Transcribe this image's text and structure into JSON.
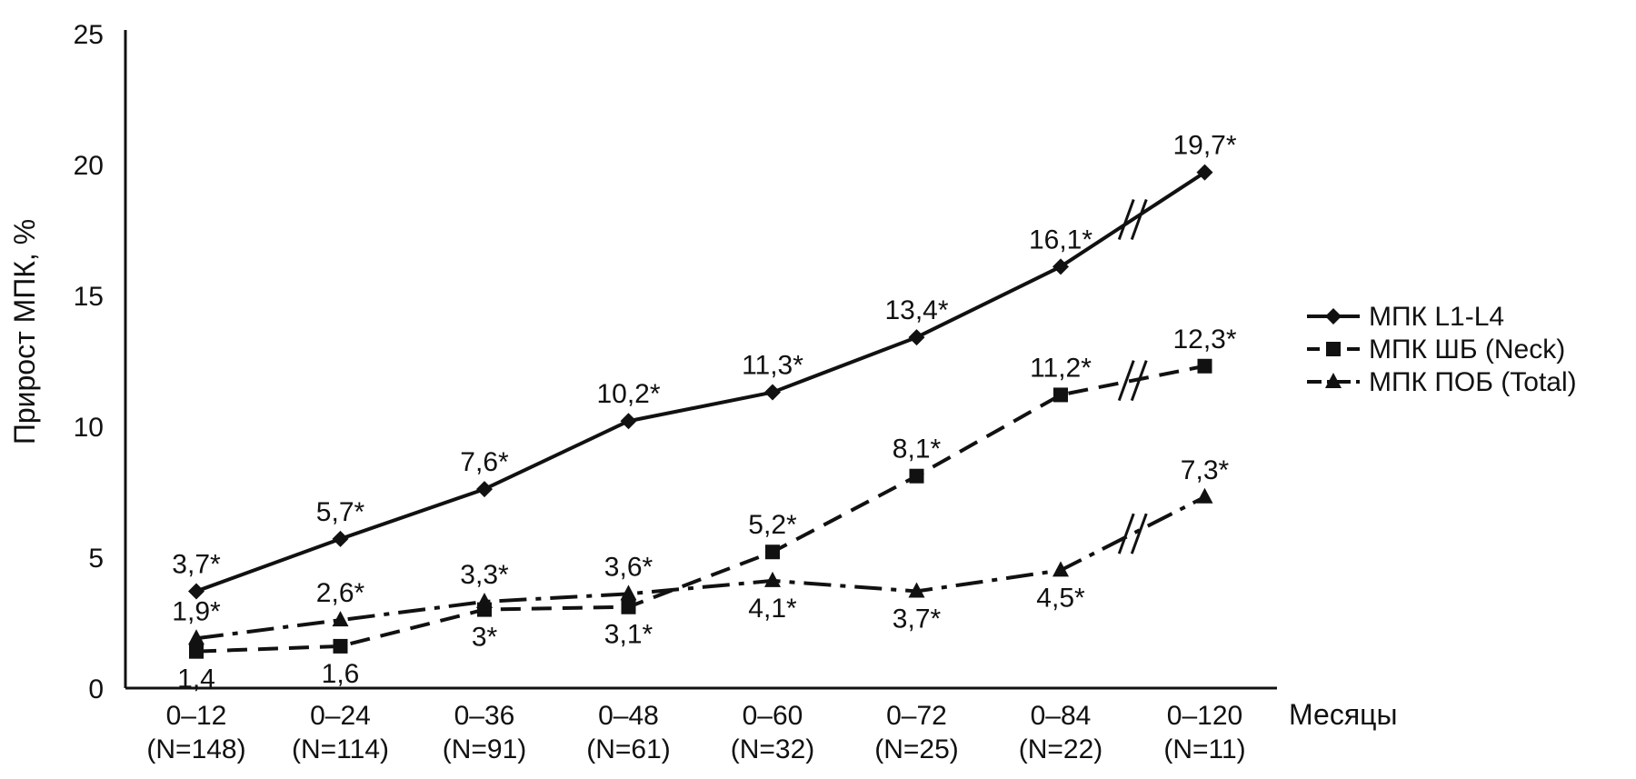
{
  "chart_data": {
    "type": "line",
    "ylabel": "Прирост МПК, %",
    "xlabel": "Месяцы",
    "ylim": [
      0,
      25
    ],
    "yticks": [
      "0",
      "5",
      "10",
      "15",
      "20",
      "25"
    ],
    "categories": [
      {
        "range": "0–12",
        "n": "(N=148)"
      },
      {
        "range": "0–24",
        "n": "(N=114)"
      },
      {
        "range": "0–36",
        "n": "(N=91)"
      },
      {
        "range": "0–48",
        "n": "(N=61)"
      },
      {
        "range": "0–60",
        "n": "(N=32)"
      },
      {
        "range": "0–72",
        "n": "(N=25)"
      },
      {
        "range": "0–84",
        "n": "(N=22)"
      },
      {
        "range": "0–120",
        "n": "(N=11)"
      }
    ],
    "axis_break_between": [
      "0–84",
      "0–120"
    ],
    "legend_position": "right",
    "series": [
      {
        "name": "МПК L1-L4",
        "line_style": "solid",
        "marker": "diamond",
        "values": [
          3.7,
          5.7,
          7.6,
          10.2,
          11.3,
          13.4,
          16.1,
          19.7
        ],
        "labels": [
          "3,7*",
          "5,7*",
          "7,6*",
          "10,2*",
          "11,3*",
          "13,4*",
          "16,1*",
          "19,7*"
        ],
        "label_pos": [
          "above",
          "above",
          "above",
          "above",
          "above",
          "above",
          "above",
          "above"
        ]
      },
      {
        "name": "МПК ШБ (Neck)",
        "line_style": "dashed",
        "marker": "square",
        "values": [
          1.4,
          1.6,
          3.0,
          3.1,
          5.2,
          8.1,
          11.2,
          12.3
        ],
        "labels": [
          "1,4",
          "1,6",
          "3*",
          "3,1*",
          "5,2*",
          "8,1*",
          "11,2*",
          "12,3*"
        ],
        "label_pos": [
          "below",
          "below",
          "below",
          "below",
          "above",
          "above",
          "above",
          "above"
        ]
      },
      {
        "name": "МПК ПОБ (Total)",
        "line_style": "dash-dot",
        "marker": "triangle",
        "values": [
          1.9,
          2.6,
          3.3,
          3.6,
          4.1,
          3.7,
          4.5,
          7.3
        ],
        "labels": [
          "1,9*",
          "2,6*",
          "3,3*",
          "3,6*",
          "4,1*",
          "3,7*",
          "4,5*",
          "7,3*"
        ],
        "label_pos": [
          "above",
          "above",
          "above",
          "above",
          "below",
          "below",
          "below",
          "above"
        ]
      }
    ]
  }
}
